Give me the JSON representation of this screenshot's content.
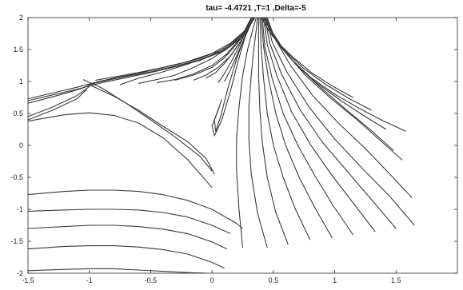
{
  "chart_data": {
    "type": "line",
    "title": "tau= -4.4721 ,T=1 ,Delta=-5",
    "xlabel": "",
    "ylabel": "",
    "xlim": [
      -1.5,
      2
    ],
    "ylim": [
      -2,
      2
    ],
    "xticks": [
      "-1.5",
      "-1",
      "-0.5",
      "0",
      "0.5",
      "1",
      "1.5"
    ],
    "xtick_values": [
      -1.5,
      -1,
      -0.5,
      0,
      0.5,
      1,
      1.5
    ],
    "yticks": [
      "-2",
      "-1.5",
      "-1",
      "-0.5",
      "0",
      "0.5",
      "1",
      "1.5",
      "2"
    ],
    "ytick_values": [
      -2,
      -1.5,
      -1,
      -0.5,
      0,
      0.5,
      1,
      1.5,
      2
    ],
    "grid": false,
    "series": [
      {
        "x": [
          -1.5,
          -1.3,
          -1.1,
          -1.0,
          -0.9,
          -0.7,
          -0.5,
          -0.3,
          -0.1,
          0.1,
          0.25,
          0.33
        ],
        "y": [
          0.7,
          0.79,
          0.88,
          0.93,
          0.98,
          1.06,
          1.14,
          1.23,
          1.33,
          1.48,
          1.7,
          2.0
        ]
      },
      {
        "x": [
          -1.5,
          -1.3,
          -1.1,
          -1.0,
          -0.9,
          -0.7,
          -0.5,
          -0.3,
          -0.1,
          0.1,
          0.25,
          0.34
        ],
        "y": [
          0.73,
          0.82,
          0.91,
          0.96,
          1.01,
          1.09,
          1.17,
          1.26,
          1.36,
          1.51,
          1.73,
          2.0
        ]
      },
      {
        "x": [
          -1.5,
          -1.3,
          -1.15,
          -1.05,
          -0.98,
          -0.9,
          -0.7,
          -0.5,
          -0.3,
          -0.1,
          0.1,
          0.25,
          0.35
        ],
        "y": [
          0.66,
          0.76,
          0.84,
          0.9,
          0.96,
          1.0,
          1.08,
          1.15,
          1.24,
          1.34,
          1.49,
          1.71,
          2.0
        ]
      },
      {
        "x": [
          -1.5,
          -1.3,
          -1.1,
          -1.0
        ],
        "y": [
          0.45,
          0.6,
          0.78,
          0.92
        ]
      },
      {
        "x": [
          -1.5,
          -1.3,
          -1.1,
          -1.02
        ],
        "y": [
          0.4,
          0.55,
          0.73,
          0.88
        ]
      },
      {
        "x": [
          -1.05,
          -0.9,
          -0.7,
          -0.5,
          -0.3,
          -0.1,
          0.0
        ],
        "y": [
          1.03,
          0.9,
          0.66,
          0.4,
          0.13,
          -0.17,
          -0.4
        ]
      },
      {
        "x": [
          -1.0,
          -0.8,
          -0.6,
          -0.4,
          -0.2,
          -0.05,
          0.02
        ],
        "y": [
          0.95,
          0.77,
          0.55,
          0.3,
          0.06,
          -0.2,
          -0.45
        ]
      },
      {
        "x": [
          -1.5,
          -1.2,
          -1.0,
          -0.8,
          -0.6,
          -0.4,
          -0.2,
          0.0
        ],
        "y": [
          0.38,
          0.48,
          0.51,
          0.47,
          0.35,
          0.12,
          -0.22,
          -0.66
        ]
      },
      {
        "x": [
          -1.5,
          -1.2,
          -1.0,
          -0.8,
          -0.6,
          -0.4,
          -0.2,
          0.0,
          0.2,
          0.25
        ],
        "y": [
          -0.77,
          -0.72,
          -0.7,
          -0.7,
          -0.72,
          -0.77,
          -0.86,
          -1.0,
          -1.22,
          -1.3
        ]
      },
      {
        "x": [
          -1.5,
          -1.2,
          -1.0,
          -0.8,
          -0.6,
          -0.4,
          -0.2,
          0.0,
          0.15
        ],
        "y": [
          -1.03,
          -1.01,
          -1.0,
          -1.0,
          -1.01,
          -1.05,
          -1.12,
          -1.25,
          -1.38
        ]
      },
      {
        "x": [
          -1.5,
          -1.2,
          -1.0,
          -0.8,
          -0.6,
          -0.4,
          -0.2,
          0.0,
          0.12
        ],
        "y": [
          -1.3,
          -1.27,
          -1.25,
          -1.25,
          -1.27,
          -1.31,
          -1.38,
          -1.51,
          -1.62
        ]
      },
      {
        "x": [
          -1.5,
          -1.2,
          -1.0,
          -0.8,
          -0.6,
          -0.4,
          -0.2,
          0.0,
          0.1
        ],
        "y": [
          -1.62,
          -1.58,
          -1.57,
          -1.57,
          -1.59,
          -1.63,
          -1.7,
          -1.83,
          -1.92
        ]
      },
      {
        "x": [
          -1.5,
          -1.2,
          -1.0,
          -0.8,
          -0.6,
          -0.4,
          -0.2,
          -0.05
        ],
        "y": [
          -1.96,
          -1.94,
          -1.93,
          -1.93,
          -1.95,
          -1.97,
          -1.99,
          -2.0
        ]
      },
      {
        "x": [
          -0.95,
          -0.8,
          -0.6,
          -0.4,
          -0.2,
          0.0,
          0.15,
          0.27,
          0.33
        ],
        "y": [
          1.02,
          1.07,
          1.14,
          1.22,
          1.31,
          1.44,
          1.6,
          1.8,
          2.0
        ]
      },
      {
        "x": [
          -0.75,
          -0.6,
          -0.4,
          -0.2,
          0.0,
          0.15,
          0.27,
          0.33
        ],
        "y": [
          0.95,
          1.05,
          1.15,
          1.27,
          1.41,
          1.58,
          1.8,
          2.0
        ]
      },
      {
        "x": [
          -0.6,
          -0.45,
          -0.3,
          -0.15,
          0.0,
          0.15,
          0.26,
          0.33
        ],
        "y": [
          0.97,
          1.03,
          1.1,
          1.22,
          1.36,
          1.55,
          1.78,
          2.0
        ]
      },
      {
        "x": [
          -0.45,
          -0.3,
          -0.15,
          0.0,
          0.12,
          0.24,
          0.32
        ],
        "y": [
          0.98,
          1.03,
          1.12,
          1.25,
          1.43,
          1.7,
          2.0
        ]
      },
      {
        "x": [
          -0.3,
          -0.15,
          0.0,
          0.1,
          0.2,
          0.28,
          0.33
        ],
        "y": [
          1.02,
          1.1,
          1.22,
          1.37,
          1.58,
          1.8,
          2.0
        ]
      },
      {
        "x": [
          -0.15,
          -0.05,
          0.05,
          0.15,
          0.23,
          0.29,
          0.33
        ],
        "y": [
          1.02,
          1.1,
          1.22,
          1.4,
          1.62,
          1.82,
          2.0
        ]
      },
      {
        "x": [
          -0.05,
          0.03,
          0.1,
          0.17,
          0.24,
          0.3,
          0.34
        ],
        "y": [
          1.05,
          1.14,
          1.28,
          1.45,
          1.65,
          1.85,
          2.0
        ]
      },
      {
        "x": [
          0.05,
          0.1,
          0.16,
          0.22,
          0.28,
          0.33
        ],
        "y": [
          0.98,
          1.12,
          1.32,
          1.55,
          1.8,
          2.0
        ]
      },
      {
        "x": [
          0.1,
          0.14,
          0.19,
          0.24,
          0.29,
          0.34
        ],
        "y": [
          1.0,
          1.14,
          1.35,
          1.58,
          1.8,
          2.0
        ]
      },
      {
        "x": [
          0.06,
          0.0,
          0.02,
          0.08,
          0.15,
          0.21,
          0.27,
          0.34
        ],
        "y": [
          0.6,
          0.3,
          0.15,
          0.4,
          0.85,
          1.3,
          1.7,
          2.0
        ]
      },
      {
        "x": [
          0.08,
          0.02,
          0.03,
          0.07,
          0.13,
          0.2,
          0.27,
          0.34
        ],
        "y": [
          0.72,
          0.4,
          0.22,
          0.45,
          0.9,
          1.35,
          1.72,
          2.0
        ]
      },
      {
        "x": [
          0.25,
          0.22,
          0.2,
          0.2,
          0.22,
          0.25,
          0.29,
          0.33,
          0.36
        ],
        "y": [
          -1.6,
          -1.0,
          -0.4,
          0.1,
          0.6,
          1.1,
          1.5,
          1.8,
          2.0
        ]
      },
      {
        "x": [
          0.45,
          0.37,
          0.32,
          0.3,
          0.3,
          0.32,
          0.34,
          0.36,
          0.37
        ],
        "y": [
          -1.6,
          -1.05,
          -0.45,
          0.1,
          0.6,
          1.1,
          1.5,
          1.8,
          2.0
        ]
      },
      {
        "x": [
          0.62,
          0.52,
          0.45,
          0.41,
          0.39,
          0.38,
          0.38,
          0.38
        ],
        "y": [
          -1.55,
          -1.05,
          -0.5,
          0.05,
          0.55,
          1.1,
          1.6,
          2.0
        ]
      },
      {
        "x": [
          0.8,
          0.68,
          0.58,
          0.5,
          0.45,
          0.42,
          0.4,
          0.39
        ],
        "y": [
          -1.48,
          -1.0,
          -0.5,
          0.0,
          0.5,
          1.05,
          1.55,
          2.0
        ]
      },
      {
        "x": [
          0.98,
          0.84,
          0.71,
          0.6,
          0.52,
          0.46,
          0.42,
          0.4
        ],
        "y": [
          -1.45,
          -0.98,
          -0.5,
          0.0,
          0.5,
          1.05,
          1.55,
          2.0
        ]
      },
      {
        "x": [
          1.15,
          0.99,
          0.84,
          0.7,
          0.58,
          0.49,
          0.43,
          0.41
        ],
        "y": [
          -1.4,
          -0.95,
          -0.48,
          0.0,
          0.5,
          1.05,
          1.55,
          2.0
        ]
      },
      {
        "x": [
          1.33,
          1.15,
          0.97,
          0.8,
          0.65,
          0.53,
          0.45,
          0.42
        ],
        "y": [
          -1.35,
          -0.9,
          -0.45,
          0.02,
          0.52,
          1.08,
          1.58,
          2.0
        ]
      },
      {
        "x": [
          1.5,
          1.3,
          1.1,
          0.9,
          0.72,
          0.57,
          0.47,
          0.43
        ],
        "y": [
          -1.3,
          -0.85,
          -0.4,
          0.05,
          0.55,
          1.1,
          1.6,
          2.0
        ]
      },
      {
        "x": [
          1.65,
          1.45,
          1.22,
          1.0,
          0.79,
          0.61,
          0.49,
          0.44
        ],
        "y": [
          -1.25,
          -0.8,
          -0.35,
          0.1,
          0.6,
          1.15,
          1.62,
          2.0
        ]
      },
      {
        "x": [
          1.63,
          1.45,
          1.25,
          1.03,
          0.82,
          0.64,
          0.51,
          0.45
        ],
        "y": [
          -0.82,
          -0.45,
          -0.05,
          0.35,
          0.78,
          1.25,
          1.68,
          2.0
        ]
      },
      {
        "x": [
          1.55,
          1.37,
          1.17,
          0.96,
          0.76,
          0.6,
          0.49,
          0.44
        ],
        "y": [
          -0.23,
          0.08,
          0.42,
          0.75,
          1.1,
          1.45,
          1.78,
          2.0
        ]
      },
      {
        "x": [
          1.48,
          1.3,
          1.1,
          0.9,
          0.72,
          0.57,
          0.47,
          0.43
        ],
        "y": [
          -0.08,
          0.23,
          0.55,
          0.88,
          1.2,
          1.52,
          1.82,
          2.0
        ]
      },
      {
        "x": [
          1.58,
          1.4,
          1.2,
          1.0,
          0.8,
          0.63,
          0.5,
          0.44
        ],
        "y": [
          0.22,
          0.38,
          0.58,
          0.8,
          1.07,
          1.38,
          1.72,
          2.0
        ]
      },
      {
        "x": [
          1.42,
          1.25,
          1.05,
          0.85,
          0.68,
          0.54,
          0.46,
          0.42
        ],
        "y": [
          0.25,
          0.45,
          0.7,
          0.98,
          1.28,
          1.58,
          1.85,
          2.0
        ]
      },
      {
        "x": [
          1.3,
          1.12,
          0.93,
          0.75,
          0.6,
          0.49,
          0.43,
          0.41
        ],
        "y": [
          0.55,
          0.73,
          0.95,
          1.2,
          1.47,
          1.72,
          1.9,
          2.0
        ]
      },
      {
        "x": [
          1.15,
          0.98,
          0.81,
          0.66,
          0.54,
          0.46,
          0.42,
          0.4
        ],
        "y": [
          0.75,
          0.93,
          1.14,
          1.38,
          1.6,
          1.8,
          1.94,
          2.0
        ]
      }
    ]
  }
}
